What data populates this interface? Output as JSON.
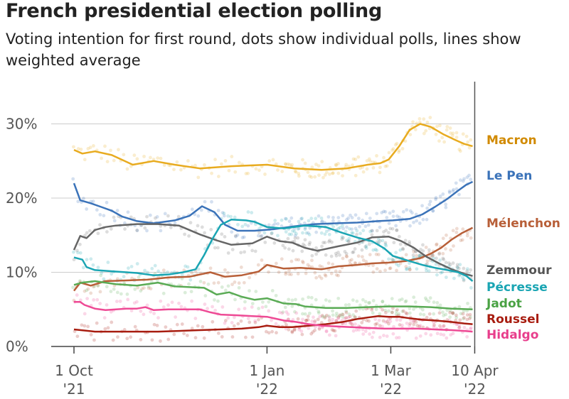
{
  "chart_data": {
    "type": "line",
    "title": "French presidential election polling",
    "subtitle": "Voting intention for first round, dots show individual polls, lines show weighted average",
    "xlabel": "",
    "ylabel": "",
    "ylim": [
      0,
      32
    ],
    "x_range_days": [
      -10,
      193
    ],
    "x_ticks": [
      {
        "day": 0,
        "line1": "1 Oct",
        "line2": "'21"
      },
      {
        "day": 92,
        "line1": "1 Jan",
        "line2": "'22"
      },
      {
        "day": 151,
        "line1": "1 Mar",
        "line2": "'22"
      },
      {
        "day": 191,
        "line1": "10 Apr",
        "line2": "'22"
      }
    ],
    "y_ticks": [
      {
        "value": 0,
        "label": "0%"
      },
      {
        "value": 10,
        "label": "10%"
      },
      {
        "value": 20,
        "label": "20%"
      },
      {
        "value": 30,
        "label": "30%"
      }
    ],
    "marker_day": 191,
    "series": [
      {
        "name": "Macron",
        "color": "#e8ab1f",
        "label_color": "#d18a00",
        "points": [
          [
            0,
            26.5
          ],
          [
            4,
            26
          ],
          [
            10,
            26.3
          ],
          [
            18,
            25.8
          ],
          [
            28,
            24.5
          ],
          [
            38,
            25
          ],
          [
            48,
            24.5
          ],
          [
            60,
            24
          ],
          [
            75,
            24.3
          ],
          [
            92,
            24.5
          ],
          [
            105,
            24
          ],
          [
            118,
            23.8
          ],
          [
            130,
            24
          ],
          [
            140,
            24.5
          ],
          [
            146,
            24.7
          ],
          [
            150,
            25.2
          ],
          [
            155,
            27
          ],
          [
            160,
            29.2
          ],
          [
            165,
            30
          ],
          [
            170,
            29.6
          ],
          [
            176,
            28.6
          ],
          [
            182,
            27.8
          ],
          [
            186,
            27.3
          ],
          [
            190,
            27
          ]
        ]
      },
      {
        "name": "Le Pen",
        "color": "#3b73b9",
        "label_color": "#3b73b9",
        "points": [
          [
            0,
            22
          ],
          [
            3,
            19.7
          ],
          [
            8,
            19.3
          ],
          [
            13,
            18.8
          ],
          [
            18,
            18.3
          ],
          [
            23,
            17.5
          ],
          [
            30,
            16.9
          ],
          [
            38,
            16.6
          ],
          [
            48,
            17
          ],
          [
            55,
            17.6
          ],
          [
            61,
            18.9
          ],
          [
            67,
            18.1
          ],
          [
            72,
            16.4
          ],
          [
            78,
            15.6
          ],
          [
            86,
            15.6
          ],
          [
            95,
            15.8
          ],
          [
            105,
            16.2
          ],
          [
            115,
            16.5
          ],
          [
            125,
            16.6
          ],
          [
            135,
            16.7
          ],
          [
            145,
            16.9
          ],
          [
            152,
            17
          ],
          [
            160,
            17.2
          ],
          [
            166,
            17.8
          ],
          [
            172,
            18.8
          ],
          [
            178,
            19.9
          ],
          [
            183,
            21
          ],
          [
            187,
            21.8
          ],
          [
            190,
            22.2
          ]
        ]
      },
      {
        "name": "Mélenchon",
        "color": "#b85f38",
        "label_color": "#b85f38",
        "points": [
          [
            0,
            7.5
          ],
          [
            3,
            8.6
          ],
          [
            8,
            8.2
          ],
          [
            15,
            8.8
          ],
          [
            25,
            8.9
          ],
          [
            35,
            9
          ],
          [
            45,
            9.3
          ],
          [
            55,
            9.4
          ],
          [
            65,
            10
          ],
          [
            72,
            9.4
          ],
          [
            80,
            9.6
          ],
          [
            88,
            10.1
          ],
          [
            92,
            11
          ],
          [
            100,
            10.5
          ],
          [
            108,
            10.6
          ],
          [
            118,
            10.4
          ],
          [
            126,
            10.8
          ],
          [
            135,
            11
          ],
          [
            142,
            11.2
          ],
          [
            150,
            11.3
          ],
          [
            158,
            11.5
          ],
          [
            165,
            11.9
          ],
          [
            170,
            12.5
          ],
          [
            175,
            13.3
          ],
          [
            180,
            14.4
          ],
          [
            185,
            15.3
          ],
          [
            190,
            16
          ]
        ]
      },
      {
        "name": "Zemmour",
        "color": "#666666",
        "label_color": "#555555",
        "points": [
          [
            0,
            13
          ],
          [
            3,
            14.9
          ],
          [
            6,
            14.6
          ],
          [
            10,
            15.7
          ],
          [
            15,
            16.1
          ],
          [
            20,
            16.3
          ],
          [
            30,
            16.5
          ],
          [
            40,
            16.5
          ],
          [
            50,
            16.3
          ],
          [
            60,
            15.1
          ],
          [
            68,
            14.3
          ],
          [
            75,
            13.7
          ],
          [
            85,
            13.9
          ],
          [
            92,
            14.8
          ],
          [
            98,
            14.2
          ],
          [
            104,
            14
          ],
          [
            110,
            13.3
          ],
          [
            116,
            12.9
          ],
          [
            126,
            13.5
          ],
          [
            135,
            14
          ],
          [
            142,
            14.7
          ],
          [
            150,
            14.8
          ],
          [
            156,
            14.2
          ],
          [
            162,
            13.3
          ],
          [
            168,
            12.1
          ],
          [
            174,
            11.2
          ],
          [
            180,
            10.4
          ],
          [
            186,
            9.8
          ],
          [
            190,
            9.5
          ]
        ]
      },
      {
        "name": "Pécresse",
        "color": "#1aa5b3",
        "label_color": "#1aa5b3",
        "points": [
          [
            0,
            12
          ],
          [
            4,
            11.7
          ],
          [
            6,
            10.7
          ],
          [
            10,
            10.3
          ],
          [
            20,
            10.1
          ],
          [
            30,
            9.9
          ],
          [
            38,
            9.6
          ],
          [
            45,
            9.7
          ],
          [
            52,
            10
          ],
          [
            58,
            10.4
          ],
          [
            62,
            12.3
          ],
          [
            66,
            14.5
          ],
          [
            70,
            16.4
          ],
          [
            75,
            17.1
          ],
          [
            82,
            17
          ],
          [
            86,
            16.8
          ],
          [
            92,
            16.1
          ],
          [
            100,
            15.9
          ],
          [
            110,
            16.3
          ],
          [
            120,
            16.1
          ],
          [
            128,
            15.3
          ],
          [
            136,
            14.6
          ],
          [
            142,
            14.2
          ],
          [
            148,
            13.2
          ],
          [
            152,
            12.2
          ],
          [
            160,
            11.5
          ],
          [
            166,
            11
          ],
          [
            172,
            10.6
          ],
          [
            178,
            10.3
          ],
          [
            183,
            10
          ],
          [
            187,
            9.5
          ],
          [
            190,
            8.8
          ]
        ]
      },
      {
        "name": "Jadot",
        "color": "#5aab55",
        "label_color": "#4aa244",
        "points": [
          [
            0,
            8.3
          ],
          [
            4,
            8.6
          ],
          [
            10,
            8.8
          ],
          [
            20,
            8.4
          ],
          [
            30,
            8.2
          ],
          [
            40,
            8.6
          ],
          [
            48,
            8.1
          ],
          [
            55,
            8
          ],
          [
            62,
            7.9
          ],
          [
            68,
            7
          ],
          [
            74,
            7.3
          ],
          [
            80,
            6.7
          ],
          [
            86,
            6.3
          ],
          [
            92,
            6.5
          ],
          [
            100,
            5.8
          ],
          [
            106,
            5.7
          ],
          [
            110,
            5.4
          ],
          [
            120,
            5.2
          ],
          [
            130,
            5.2
          ],
          [
            140,
            5.3
          ],
          [
            150,
            5.4
          ],
          [
            160,
            5.4
          ],
          [
            170,
            5.3
          ],
          [
            180,
            5.1
          ],
          [
            190,
            5
          ]
        ]
      },
      {
        "name": "Roussel",
        "color": "#a81d10",
        "label_color": "#a81d10",
        "points": [
          [
            0,
            2.3
          ],
          [
            10,
            2
          ],
          [
            20,
            2
          ],
          [
            30,
            2
          ],
          [
            40,
            2
          ],
          [
            50,
            2.1
          ],
          [
            60,
            2.2
          ],
          [
            70,
            2.3
          ],
          [
            80,
            2.4
          ],
          [
            88,
            2.6
          ],
          [
            92,
            2.8
          ],
          [
            98,
            2.6
          ],
          [
            104,
            2.6
          ],
          [
            112,
            2.8
          ],
          [
            120,
            3
          ],
          [
            128,
            3.3
          ],
          [
            135,
            3.7
          ],
          [
            140,
            3.9
          ],
          [
            145,
            4.1
          ],
          [
            150,
            4
          ],
          [
            155,
            4
          ],
          [
            160,
            3.8
          ],
          [
            166,
            3.6
          ],
          [
            172,
            3.5
          ],
          [
            180,
            3.3
          ],
          [
            186,
            3.1
          ],
          [
            190,
            3
          ]
        ]
      },
      {
        "name": "Hidalgo",
        "color": "#ee4a95",
        "label_color": "#e83e8c",
        "points": [
          [
            0,
            6
          ],
          [
            3,
            6
          ],
          [
            5,
            5.6
          ],
          [
            10,
            5.1
          ],
          [
            15,
            4.9
          ],
          [
            20,
            5
          ],
          [
            25,
            5.1
          ],
          [
            30,
            5.1
          ],
          [
            34,
            5.3
          ],
          [
            38,
            4.9
          ],
          [
            45,
            5
          ],
          [
            52,
            5
          ],
          [
            60,
            5
          ],
          [
            65,
            4.6
          ],
          [
            70,
            4.3
          ],
          [
            78,
            4.2
          ],
          [
            85,
            4.1
          ],
          [
            92,
            4
          ],
          [
            100,
            3.5
          ],
          [
            106,
            3.3
          ],
          [
            112,
            3
          ],
          [
            118,
            2.8
          ],
          [
            125,
            2.7
          ],
          [
            132,
            2.6
          ],
          [
            140,
            2.5
          ],
          [
            148,
            2.4
          ],
          [
            156,
            2.4
          ],
          [
            164,
            2.4
          ],
          [
            172,
            2.3
          ],
          [
            180,
            2.2
          ],
          [
            186,
            2.1
          ],
          [
            190,
            2
          ]
        ]
      }
    ]
  }
}
